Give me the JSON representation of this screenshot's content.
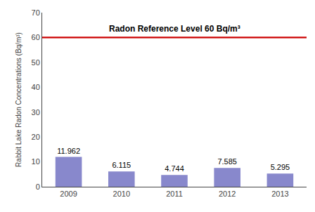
{
  "chart_data": {
    "type": "bar",
    "categories": [
      "2009",
      "2010",
      "2011",
      "2012",
      "2013"
    ],
    "values": [
      11.962,
      6.115,
      4.744,
      7.585,
      5.295
    ],
    "color": "#8888cc",
    "ylabel": "Rabbit Lake Radon Concentrations (Bq/m³)",
    "ylim": [
      0,
      70
    ],
    "yticks": [
      0,
      10,
      20,
      30,
      40,
      50,
      60,
      70
    ],
    "grid": false,
    "data_labels": true,
    "annotations": [
      {
        "type": "hline",
        "y": 60,
        "text": "Radon Reference Level 60 Bq/m³",
        "color": "#cc0000"
      }
    ]
  }
}
